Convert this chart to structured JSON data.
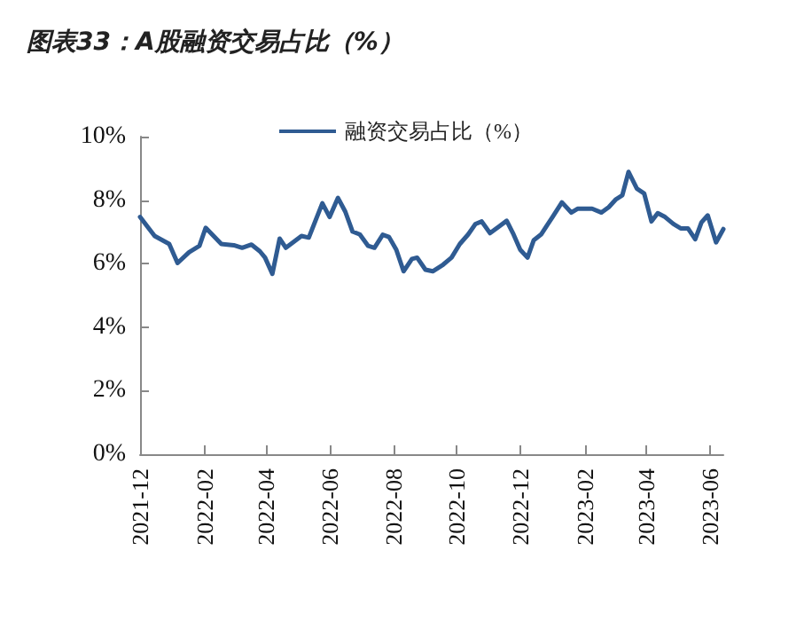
{
  "chart_data": {
    "type": "line",
    "title": "图表33：A股融资交易占比（%）",
    "x": [
      "2021-12-01",
      "2021-12-15",
      "2021-12-29",
      "2022-01-06",
      "2022-01-17",
      "2022-01-27",
      "2022-02-02",
      "2022-02-17",
      "2022-03-01",
      "2022-03-09",
      "2022-03-18",
      "2022-03-26",
      "2022-03-31",
      "2022-04-07",
      "2022-04-14",
      "2022-04-20",
      "2022-05-05",
      "2022-05-12",
      "2022-05-25",
      "2022-06-01",
      "2022-06-09",
      "2022-06-16",
      "2022-06-23",
      "2022-06-30",
      "2022-07-08",
      "2022-07-14",
      "2022-07-22",
      "2022-07-28",
      "2022-08-04",
      "2022-08-11",
      "2022-08-19",
      "2022-08-24",
      "2022-09-01",
      "2022-09-08",
      "2022-09-18",
      "2022-09-26",
      "2022-10-04",
      "2022-10-12",
      "2022-10-19",
      "2022-10-25",
      "2022-11-02",
      "2022-11-11",
      "2022-11-18",
      "2022-11-24",
      "2022-12-01",
      "2022-12-08",
      "2022-12-14",
      "2022-12-21",
      "2023-01-01",
      "2023-01-10",
      "2023-01-19",
      "2023-01-25",
      "2023-02-08",
      "2023-02-17",
      "2023-02-24",
      "2023-03-03",
      "2023-03-09",
      "2023-03-15",
      "2023-03-23",
      "2023-03-30",
      "2023-04-06",
      "2023-04-12",
      "2023-04-19",
      "2023-04-27",
      "2023-05-04",
      "2023-05-11",
      "2023-05-18",
      "2023-05-24",
      "2023-05-30",
      "2023-06-07",
      "2023-06-14"
    ],
    "series": [
      {
        "name": "融资交易占比（%）",
        "color": "#2f5b92",
        "values": [
          7.47,
          6.87,
          6.62,
          6.02,
          6.36,
          6.56,
          7.13,
          6.62,
          6.58,
          6.5,
          6.6,
          6.39,
          6.19,
          5.68,
          6.79,
          6.5,
          6.87,
          6.82,
          7.9,
          7.47,
          8.07,
          7.64,
          7.01,
          6.92,
          6.56,
          6.5,
          6.91,
          6.84,
          6.44,
          5.76,
          6.15,
          6.19,
          5.81,
          5.76,
          5.97,
          6.19,
          6.62,
          6.92,
          7.25,
          7.33,
          6.96,
          7.18,
          7.35,
          6.96,
          6.44,
          6.19,
          6.74,
          6.92,
          7.47,
          7.93,
          7.61,
          7.73,
          7.73,
          7.61,
          7.78,
          8.03,
          8.15,
          8.89,
          8.36,
          8.21,
          7.33,
          7.59,
          7.47,
          7.25,
          7.11,
          7.11,
          6.77,
          7.3,
          7.52,
          6.67,
          7.09
        ]
      }
    ],
    "xlim": [
      "2021-12-01",
      "2023-06-14"
    ],
    "xticks": [
      "2021-12",
      "2022-02",
      "2022-04",
      "2022-06",
      "2022-08",
      "2022-10",
      "2022-12",
      "2023-02",
      "2023-04",
      "2023-06"
    ],
    "ylim": [
      0,
      10
    ],
    "yticks": [
      {
        "value": 0,
        "label": "0%"
      },
      {
        "value": 2,
        "label": "2%"
      },
      {
        "value": 4,
        "label": "4%"
      },
      {
        "value": 6,
        "label": "6%"
      },
      {
        "value": 8,
        "label": "8%"
      },
      {
        "value": 10,
        "label": "10%"
      }
    ],
    "grid": false,
    "legend": "top",
    "marker": "none",
    "line_style": "solid"
  }
}
